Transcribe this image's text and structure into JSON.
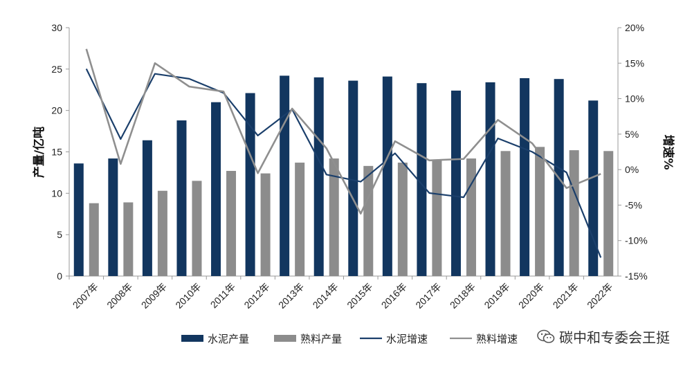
{
  "chart_data": {
    "type": "bar",
    "categories": [
      "2007年",
      "2008年",
      "2009年",
      "2010年",
      "2011年",
      "2012年",
      "2013年",
      "2014年",
      "2015年",
      "2016年",
      "2017年",
      "2018年",
      "2019年",
      "2020年",
      "2021年",
      "2022年"
    ],
    "bar_series": [
      {
        "name": "水泥产量",
        "color": "#12365f",
        "values": [
          13.6,
          14.2,
          16.4,
          18.8,
          21.0,
          22.1,
          24.2,
          24.0,
          23.6,
          24.1,
          23.3,
          22.4,
          23.4,
          23.9,
          23.8,
          21.2
        ]
      },
      {
        "name": "熟料产量",
        "color": "#8c8c8c",
        "values": [
          8.8,
          8.9,
          10.3,
          11.5,
          12.7,
          12.4,
          13.7,
          14.2,
          13.3,
          13.7,
          14.0,
          14.2,
          15.1,
          15.6,
          15.2,
          15.1
        ]
      }
    ],
    "line_series": [
      {
        "name": "水泥增速",
        "color": "#1b3f6b",
        "values": [
          14.2,
          4.3,
          13.5,
          12.8,
          10.8,
          4.8,
          8.5,
          -0.7,
          -1.7,
          2.3,
          -3.3,
          -3.9,
          4.4,
          2.5,
          -0.4,
          -12.4
        ]
      },
      {
        "name": "熟料增速",
        "color": "#8f8f8f",
        "values": [
          17.0,
          0.8,
          15.0,
          11.7,
          11.0,
          -0.5,
          8.6,
          3.0,
          -6.2,
          4.0,
          1.3,
          1.5,
          7.0,
          3.7,
          -2.6,
          -0.6
        ]
      }
    ],
    "y_left": {
      "label": "产量/亿吨",
      "min": 0,
      "max": 30,
      "ticks": [
        "0",
        "5",
        "10",
        "15",
        "20",
        "25",
        "30"
      ]
    },
    "y_right": {
      "label": "增速%",
      "min": -15,
      "max": 20,
      "ticks": [
        "-15%",
        "-10%",
        "-5%",
        "0%",
        "5%",
        "10%",
        "15%",
        "20%"
      ]
    },
    "legend": {
      "position": "bottom",
      "labels": [
        "水泥产量",
        "熟料产量",
        "水泥增速",
        "熟料增速"
      ]
    },
    "grid": false
  },
  "watermark": {
    "text": "碳中和专委会王挺",
    "icon": "wechat-icon"
  }
}
